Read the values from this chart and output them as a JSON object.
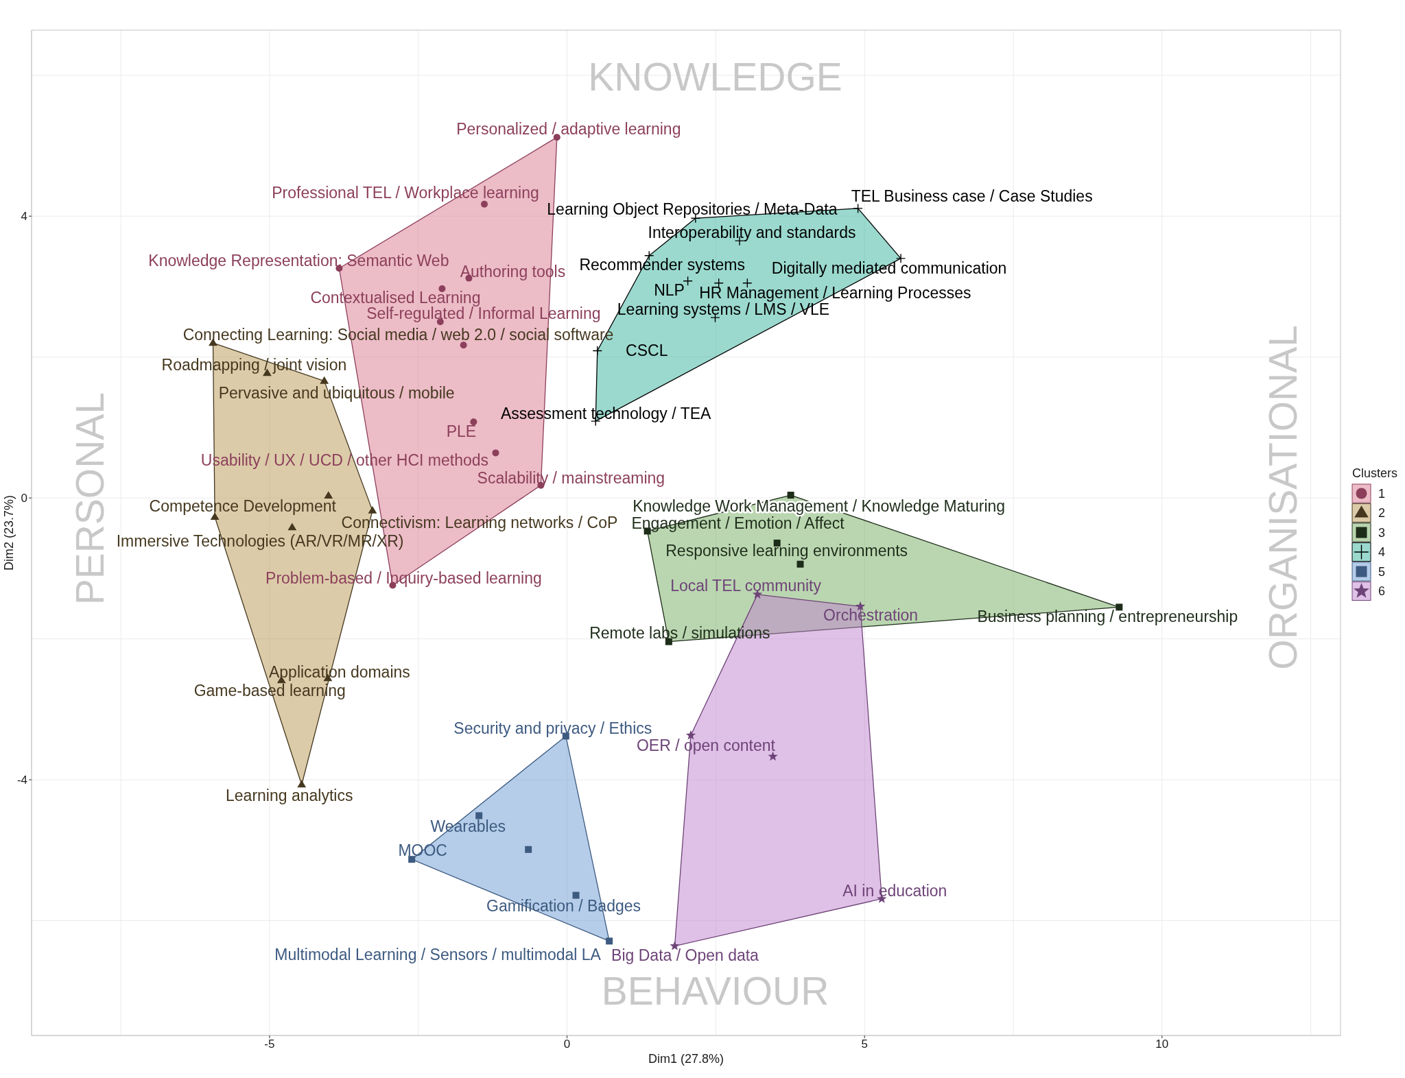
{
  "chart_data": {
    "type": "scatter",
    "xlabel": "Dim1 (27.8%)",
    "ylabel": "Dim2 (23.7%)",
    "legend_title": "Clusters",
    "legend": "right",
    "grid": true,
    "xlim": [
      -9,
      13
    ],
    "xticks": [
      -5,
      0,
      5,
      10
    ],
    "ylim": [
      -7.63,
      6.64
    ],
    "yticks": [
      -4,
      0,
      4
    ],
    "annotations": [
      "KNOWLEDGE",
      "BEHAVIOUR",
      "PERSONAL",
      "ORGANISATIONAL"
    ],
    "series": [
      {
        "type": "area",
        "color": "#ecbcc7",
        "x": [
          -0.17,
          -0.44,
          -2.93,
          -3.83
        ],
        "values": [
          5.12,
          0.18,
          -1.24,
          3.26
        ]
      },
      {
        "type": "area",
        "color": "#dccba9",
        "x": [
          -5.95,
          -4.08,
          -3.27,
          -4.46,
          -5.92
        ],
        "values": [
          2.2,
          1.66,
          -0.18,
          -4.07,
          -0.27
        ]
      },
      {
        "type": "area",
        "color": "#bad6b0",
        "x": [
          3.76,
          9.28,
          1.71,
          1.35
        ],
        "values": [
          0.04,
          -1.55,
          -2.04,
          -0.47
        ]
      },
      {
        "type": "area",
        "color": "#9bd9ce",
        "x": [
          4.89,
          5.61,
          0.48,
          0.51,
          1.38,
          2.16
        ],
        "values": [
          4.11,
          3.4,
          1.09,
          2.09,
          3.44,
          3.97
        ]
      },
      {
        "type": "area",
        "color": "#b5cde9",
        "x": [
          -0.02,
          0.71,
          -2.61
        ],
        "values": [
          -3.38,
          -6.29,
          -5.13
        ]
      },
      {
        "type": "area",
        "color": "#dfc0e6",
        "x": [
          3.2,
          4.93,
          5.29,
          1.81,
          2.08
        ],
        "values": [
          -1.37,
          -1.54,
          -5.69,
          -6.36,
          -3.37
        ]
      },
      {
        "name": "1",
        "color": "#8c3f5b",
        "marker": "circle",
        "x": [
          -0.17,
          -1.39,
          -3.83,
          -1.65,
          -2.1,
          -2.13,
          -1.57,
          -1.2,
          -0.44,
          -2.93,
          -1.74
        ],
        "values": [
          5.12,
          4.17,
          3.26,
          3.12,
          2.97,
          2.5,
          1.08,
          0.64,
          0.18,
          -1.24,
          2.17
        ],
        "value_labels": [
          "Personalized / adaptive learning",
          "Professional TEL / Workplace learning",
          "Knowledge Representation: Semantic Web",
          "Authoring tools",
          "Contextualised Learning",
          "Self-regulated / Informal Learning",
          "PLE",
          "Usability / UX / UCD / other HCI methods",
          "Scalability / mainstreaming",
          "Problem-based / Inquiry-based learning",
          null
        ]
      },
      {
        "name": "2",
        "color": "#45381f",
        "marker": "triangle",
        "x": [
          -5.95,
          -5.04,
          -4.08,
          -4.01,
          -3.27,
          -5.92,
          -4.02,
          -4.8,
          -4.46,
          -4.62
        ],
        "values": [
          2.2,
          1.77,
          1.66,
          0.03,
          -0.18,
          -0.27,
          -2.56,
          -2.59,
          -4.07,
          -0.42
        ],
        "value_labels": [
          "Connecting Learning: Social media / web 2.0 / social software",
          "Roadmapping / joint vision",
          "Pervasive and ubiquitous / mobile",
          "Competence Development",
          "Connectivism: Learning networks / CoP",
          "Immersive Technologies (AR/VR/MR/XR)",
          "Application domains",
          "Game-based learning",
          "Learning analytics",
          null
        ]
      },
      {
        "name": "3",
        "color": "#1e2d1a",
        "marker": "square",
        "x": [
          3.76,
          1.35,
          3.53,
          1.71,
          9.28,
          3.92
        ],
        "values": [
          0.04,
          -0.47,
          -0.64,
          -2.04,
          -1.55,
          -0.94
        ],
        "value_labels": [
          "Knowledge Work Management / Knowledge Maturing",
          "Engagement / Emotion / Affect",
          "Responsive learning environments",
          "Remote labs / simulations",
          "Business planning / entrepreneurship",
          null
        ]
      },
      {
        "name": "4",
        "color": "#000000",
        "marker": "cross",
        "x": [
          4.89,
          2.16,
          2.9,
          1.38,
          5.61,
          2.03,
          3.03,
          2.49,
          0.51,
          0.48,
          2.55
        ],
        "values": [
          4.11,
          3.97,
          3.65,
          3.44,
          3.4,
          3.08,
          3.05,
          2.56,
          2.09,
          1.09,
          3.05
        ],
        "value_labels": [
          "TEL Business case / Case Studies",
          "Learning Object Repositories / Meta-Data",
          "Interoperability and standards",
          "Recommender systems",
          "Digitally mediated communication",
          "NLP",
          "HR Management / Learning Processes",
          "Learning systems / LMS / VLE",
          "CSCL",
          "Assessment technology / TEA",
          null
        ]
      },
      {
        "name": "5",
        "color": "#3d5a80",
        "marker": "square",
        "x": [
          -0.02,
          -1.48,
          -2.61,
          0.15,
          0.71,
          -0.65
        ],
        "values": [
          -3.38,
          -4.51,
          -5.13,
          -5.64,
          -6.29,
          -4.99
        ],
        "value_labels": [
          "Security and privacy / Ethics",
          "Wearables",
          "MOOC",
          "Gamification / Badges",
          "Multimodal Learning / Sensors / multimodal LA",
          null
        ]
      },
      {
        "name": "6",
        "color": "#6e4478",
        "marker": "star",
        "x": [
          3.2,
          4.93,
          2.08,
          5.29,
          1.81,
          3.46
        ],
        "values": [
          -1.37,
          -1.54,
          -3.37,
          -5.69,
          -6.36,
          -3.67
        ],
        "value_labels": [
          "Local TEL community",
          "Orchestration",
          "OER / open content",
          "AI in education",
          "Big Data / Open data",
          null
        ]
      }
    ]
  }
}
